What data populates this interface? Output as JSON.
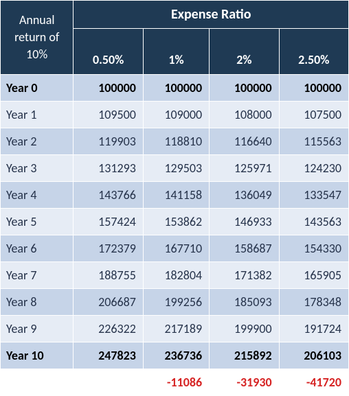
{
  "type": "table",
  "styling": {
    "header_bg": "#1f3a54",
    "header_fg": "#ffffff",
    "row_bg": "#c6d4e8",
    "row_bg_alt": "#e6ecf5",
    "border_color": "#ffffff",
    "body_text_color": "#25324a",
    "bold_text_color": "#000000",
    "negative_color": "#d62323",
    "font_family": "Gill Sans / Segoe UI",
    "header_fontsize_pt": 14,
    "body_fontsize_pt": 13,
    "col_widths_pct": [
      21,
      20,
      19,
      20,
      20
    ]
  },
  "header": {
    "corner_label": "Annual return of 10%",
    "super_header": "Expense Ratio",
    "sub_headers": [
      "0.50%",
      "1%",
      "2%",
      "2.50%"
    ]
  },
  "rows": [
    {
      "label": "Year 0",
      "values": [
        "100000",
        "100000",
        "100000",
        "100000"
      ],
      "bold": true,
      "stripe": false
    },
    {
      "label": "Year 1",
      "values": [
        "109500",
        "109000",
        "108000",
        "107500"
      ],
      "bold": false,
      "stripe": true
    },
    {
      "label": "Year 2",
      "values": [
        "119903",
        "118810",
        "116640",
        "115563"
      ],
      "bold": false,
      "stripe": false
    },
    {
      "label": "Year 3",
      "values": [
        "131293",
        "129503",
        "125971",
        "124230"
      ],
      "bold": false,
      "stripe": true
    },
    {
      "label": "Year 4",
      "values": [
        "143766",
        "141158",
        "136049",
        "133547"
      ],
      "bold": false,
      "stripe": false
    },
    {
      "label": "Year 5",
      "values": [
        "157424",
        "153862",
        "146933",
        "143563"
      ],
      "bold": false,
      "stripe": true
    },
    {
      "label": "Year 6",
      "values": [
        "172379",
        "167710",
        "158687",
        "154330"
      ],
      "bold": false,
      "stripe": false
    },
    {
      "label": "Year 7",
      "values": [
        "188755",
        "182804",
        "171382",
        "165905"
      ],
      "bold": false,
      "stripe": true
    },
    {
      "label": "Year 8",
      "values": [
        "206687",
        "199256",
        "185093",
        "178348"
      ],
      "bold": false,
      "stripe": false
    },
    {
      "label": "Year 9",
      "values": [
        "226322",
        "217189",
        "199900",
        "191724"
      ],
      "bold": false,
      "stripe": true
    },
    {
      "label": "Year 10",
      "values": [
        "247823",
        "236736",
        "215892",
        "206103"
      ],
      "bold": true,
      "stripe": false
    }
  ],
  "diff_row": {
    "values": [
      "",
      "-11086",
      "-31930",
      "-41720"
    ]
  }
}
